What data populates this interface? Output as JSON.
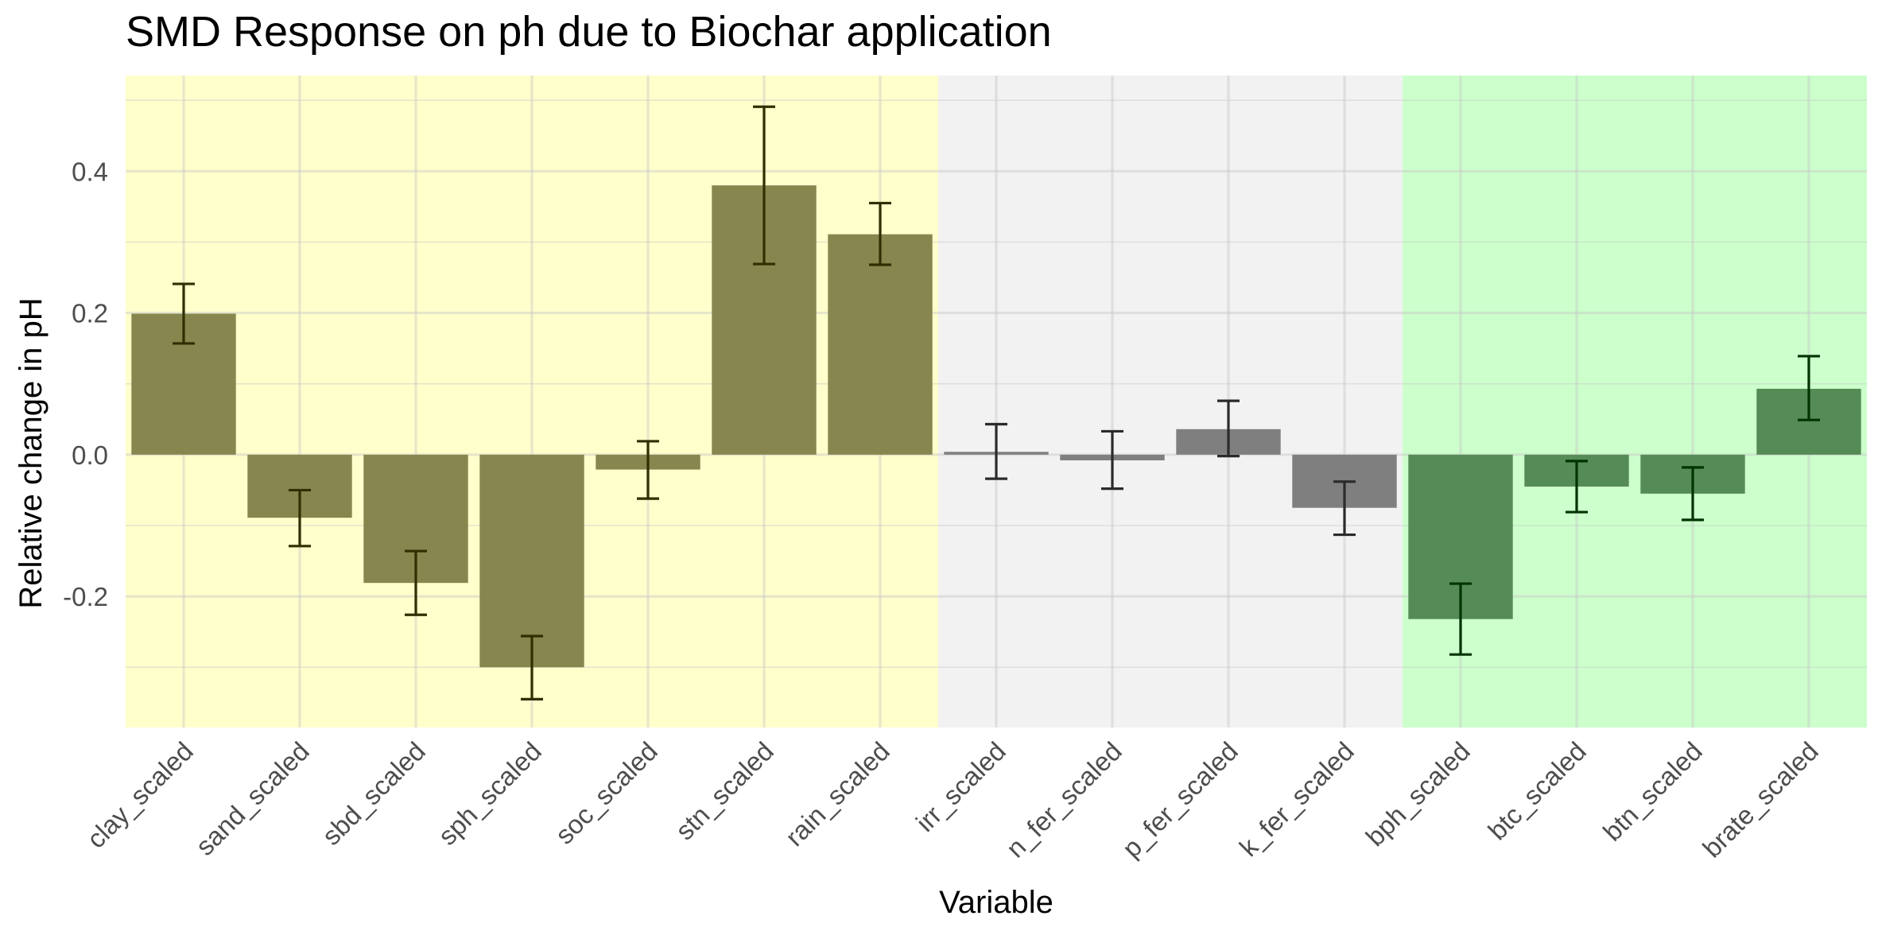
{
  "chart_data": {
    "type": "bar",
    "title": "SMD Response on ph due to Biochar application",
    "xlabel": "Variable",
    "ylabel": "Relative change in pH",
    "ylim": [
      -0.385,
      0.535
    ],
    "yticks": [
      -0.2,
      0.0,
      0.2,
      0.4
    ],
    "ytick_labels": [
      "-0.2",
      "0.0",
      "0.2",
      "0.4"
    ],
    "grid": true,
    "categories": [
      "clay_scaled",
      "sand_scaled",
      "sbd_scaled",
      "sph_scaled",
      "soc_scaled",
      "stn_scaled",
      "rain_scaled",
      "irr_scaled",
      "n_fer_scaled",
      "p_fer_scaled",
      "k_fer_scaled",
      "bph_scaled",
      "btc_scaled",
      "btn_scaled",
      "brate_scaled"
    ],
    "values": [
      0.199,
      -0.089,
      -0.181,
      -0.3,
      -0.021,
      0.38,
      0.311,
      0.004,
      -0.008,
      0.036,
      -0.075,
      -0.232,
      -0.045,
      -0.055,
      0.093
    ],
    "error_lower": [
      0.157,
      -0.129,
      -0.226,
      -0.345,
      -0.062,
      0.269,
      0.268,
      -0.034,
      -0.048,
      -0.002,
      -0.113,
      -0.282,
      -0.081,
      -0.092,
      0.049
    ],
    "error_upper": [
      0.241,
      -0.05,
      -0.136,
      -0.256,
      0.019,
      0.491,
      0.355,
      0.043,
      0.033,
      0.076,
      -0.038,
      -0.182,
      -0.009,
      -0.018,
      0.139
    ],
    "groups": [
      {
        "start": 0,
        "end": 6,
        "background": "#ffffcc",
        "bar_color": "#87864f",
        "error_color": "#2f2f00"
      },
      {
        "start": 7,
        "end": 10,
        "background": "#f2f2f2",
        "bar_color": "#7f7f7f",
        "error_color": "#2b2b2b"
      },
      {
        "start": 11,
        "end": 14,
        "background": "#ccffcc",
        "bar_color": "#558c55",
        "error_color": "#003300"
      }
    ]
  }
}
